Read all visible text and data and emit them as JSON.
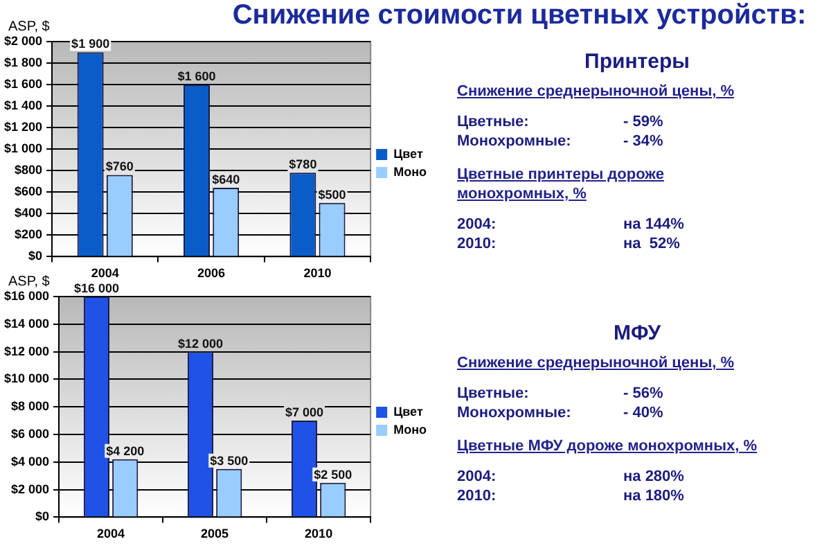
{
  "chart_data": [
    {
      "type": "bar",
      "title": "Снижение стоимости цветных устройств:",
      "ylabel": "ASP, $",
      "categories": [
        "2004",
        "2006",
        "2010"
      ],
      "series": [
        {
          "name": "Цвет",
          "color": "#0a5cc8",
          "values": [
            1900,
            1600,
            780
          ],
          "value_labels": [
            "$1 900",
            "$1 600",
            "$780"
          ]
        },
        {
          "name": "Моно",
          "color": "#99ccff",
          "values": [
            760,
            640,
            500
          ],
          "value_labels": [
            "$760",
            "$640",
            "$500"
          ]
        }
      ],
      "ylim": [
        0,
        2000
      ],
      "yticks": [
        {
          "value": 0,
          "label": "$0"
        },
        {
          "value": 200,
          "label": "$200"
        },
        {
          "value": 400,
          "label": "$400"
        },
        {
          "value": 600,
          "label": "$600"
        },
        {
          "value": 800,
          "label": "$800"
        },
        {
          "value": 1000,
          "label": "$1 000"
        },
        {
          "value": 1200,
          "label": "$1 200"
        },
        {
          "value": 1400,
          "label": "$1 400"
        },
        {
          "value": 1600,
          "label": "$1 600"
        },
        {
          "value": 1800,
          "label": "$1 800"
        },
        {
          "value": 2000,
          "label": "$2 000"
        }
      ],
      "grid": "y",
      "legend": "right"
    },
    {
      "type": "other",
      "title": "Принтеры",
      "annotations": [
        "Снижение среднерыночной цены, %",
        "Цветные:",
        "- 59%",
        "Монохромные:",
        "- 34%",
        "Цветные принтеры дороже монохромных, %",
        "2004:",
        "на 144%",
        "2010:",
        "на  52%"
      ]
    },
    {
      "type": "bar",
      "ylabel": "ASP, $",
      "categories": [
        "2004",
        "2005",
        "2010"
      ],
      "series": [
        {
          "name": "Цвет",
          "color": "#1f52e6",
          "values": [
            16000,
            12000,
            7000
          ],
          "value_labels": [
            "$16 000",
            "$12 000",
            "$7 000"
          ]
        },
        {
          "name": "Моно",
          "color": "#99ccff",
          "values": [
            4200,
            3500,
            2500
          ],
          "value_labels": [
            "$4 200",
            "$3 500",
            "$2 500"
          ]
        }
      ],
      "ylim": [
        0,
        16000
      ],
      "yticks": [
        {
          "value": 0,
          "label": "$0"
        },
        {
          "value": 2000,
          "label": "$2 000"
        },
        {
          "value": 4000,
          "label": "$4 000"
        },
        {
          "value": 6000,
          "label": "$6 000"
        },
        {
          "value": 8000,
          "label": "$8 000"
        },
        {
          "value": 10000,
          "label": "$10 000"
        },
        {
          "value": 12000,
          "label": "$12 000"
        },
        {
          "value": 14000,
          "label": "$14 000"
        },
        {
          "value": 16000,
          "label": "$16 000"
        }
      ],
      "grid": "y",
      "legend": "right"
    },
    {
      "type": "other",
      "title": "МФУ",
      "annotations": [
        "Снижение среднерыночной цены, %",
        "Цветные:",
        "- 56%",
        "Монохромные:",
        "- 40%",
        "Цветные МФУ дороже монохромных, %",
        "2004:",
        "на 280%",
        "2010:",
        "на 180%"
      ]
    }
  ]
}
